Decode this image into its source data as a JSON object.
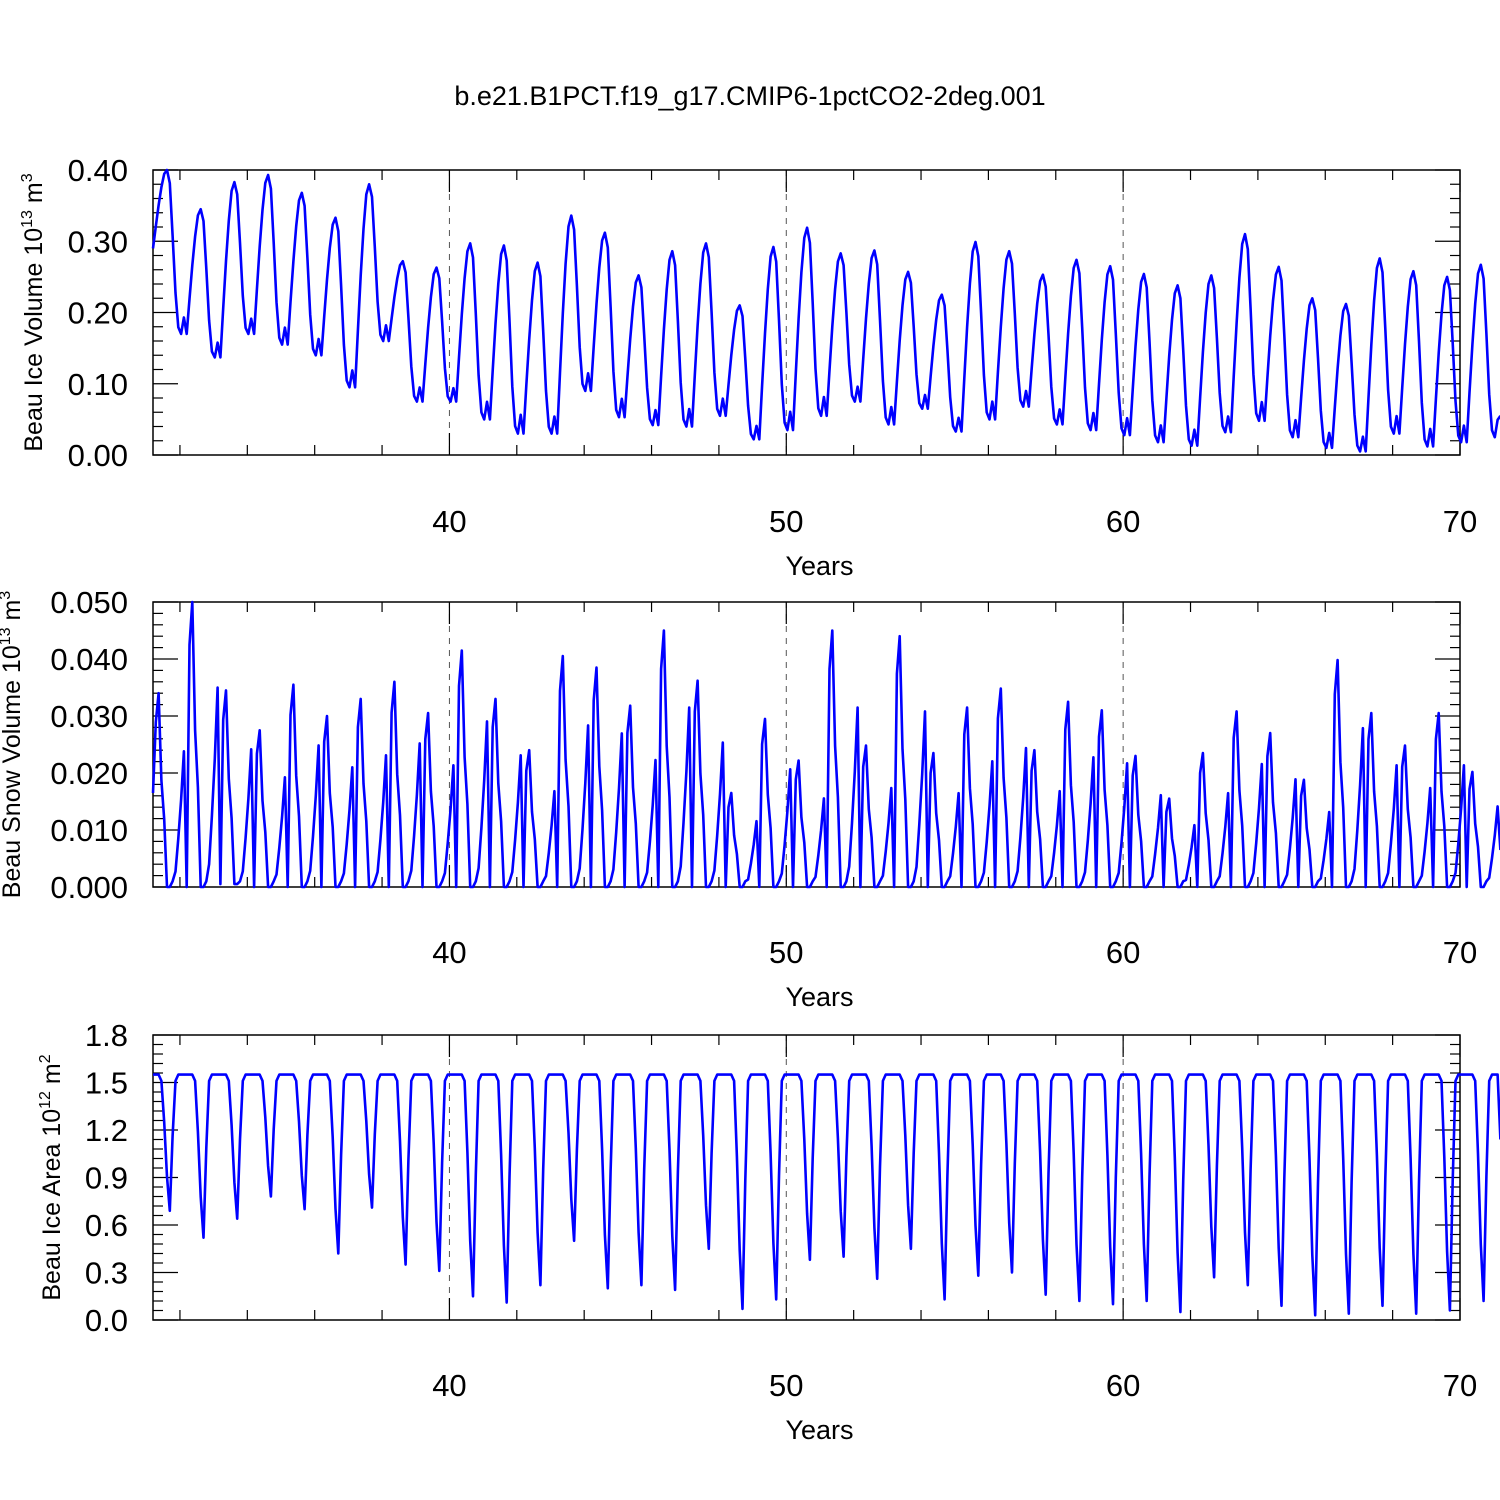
{
  "title": "b.e21.B1PCT.f19_g17.CMIP6-1pctCO2-2deg.001",
  "chart_data": [
    {
      "type": "line",
      "name": "ice-volume",
      "ylabel_main": "Beau Ice Volume 10",
      "ylabel_exp": "13",
      "ylabel_unit": " m",
      "ylabel_unit_exp": "3",
      "xlabel": "Years",
      "xlim": [
        31.2,
        70
      ],
      "ylim": [
        0,
        0.4
      ],
      "xticks": [
        "40",
        "50",
        "60",
        "70"
      ],
      "xtick_values": [
        40,
        50,
        60,
        70
      ],
      "yticks": [
        "0.00",
        "0.10",
        "0.20",
        "0.30",
        "0.40"
      ],
      "ytick_values": [
        0,
        0.1,
        0.2,
        0.3,
        0.4
      ],
      "line_color": "#0000ff",
      "start_year": 31.2,
      "maxima": [
        0.4,
        0.345,
        0.383,
        0.393,
        0.368,
        0.333,
        0.38,
        0.272,
        0.263,
        0.297,
        0.294,
        0.27,
        0.336,
        0.312,
        0.252,
        0.286,
        0.297,
        0.21,
        0.292,
        0.319,
        0.283,
        0.287,
        0.257,
        0.225,
        0.299,
        0.286,
        0.253,
        0.274,
        0.265,
        0.254,
        0.238,
        0.252,
        0.31,
        0.264,
        0.22,
        0.212,
        0.276,
        0.258,
        0.25,
        0.267
      ],
      "minima": [
        0.17,
        0.137,
        0.17,
        0.155,
        0.14,
        0.095,
        0.16,
        0.075,
        0.075,
        0.05,
        0.03,
        0.03,
        0.09,
        0.053,
        0.042,
        0.04,
        0.055,
        0.022,
        0.035,
        0.055,
        0.075,
        0.043,
        0.065,
        0.033,
        0.05,
        0.068,
        0.043,
        0.035,
        0.028,
        0.018,
        0.013,
        0.032,
        0.048,
        0.025,
        0.01,
        0.005,
        0.03,
        0.012,
        0.018,
        0.025
      ],
      "end_value": 0.055
    },
    {
      "type": "line",
      "name": "snow-volume",
      "ylabel_main": "Beau Snow Volume 10",
      "ylabel_exp": "13",
      "ylabel_unit": " m",
      "ylabel_unit_exp": "3",
      "xlabel": "Years",
      "xlim": [
        31.2,
        70
      ],
      "ylim": [
        0,
        0.05
      ],
      "xticks": [
        "40",
        "50",
        "60",
        "70"
      ],
      "xtick_values": [
        40,
        50,
        60,
        70
      ],
      "yticks": [
        "0.000",
        "0.010",
        "0.020",
        "0.030",
        "0.040",
        "0.050"
      ],
      "ytick_values": [
        0,
        0.01,
        0.02,
        0.03,
        0.04,
        0.05
      ],
      "line_color": "#0000ff",
      "start_year": 31.2,
      "maxima": [
        0.034,
        0.05,
        0.0345,
        0.0275,
        0.0355,
        0.03,
        0.033,
        0.036,
        0.0305,
        0.0415,
        0.033,
        0.024,
        0.0405,
        0.0385,
        0.0318,
        0.045,
        0.0362,
        0.0165,
        0.0295,
        0.0222,
        0.045,
        0.0248,
        0.044,
        0.0235,
        0.0315,
        0.0348,
        0.024,
        0.0325,
        0.031,
        0.023,
        0.0155,
        0.0235,
        0.0308,
        0.027,
        0.0188,
        0.0398,
        0.0305,
        0.0248,
        0.0305,
        0.0202
      ],
      "minima": [
        0.0,
        0.0,
        0.0005,
        0.0,
        0.0,
        0.0,
        0.0,
        0.0,
        0.0,
        0.0,
        0.0,
        0.0,
        0.0,
        0.0,
        0.0,
        0.0,
        0.0,
        0.0,
        0.0,
        0.0,
        0.0,
        0.0,
        0.0,
        0.0,
        0.0,
        0.0,
        0.0,
        0.0,
        0.0,
        0.0,
        0.0,
        0.0,
        0.0,
        0.0,
        0.0,
        0.0,
        0.0,
        0.0,
        0.0,
        0.0
      ],
      "start_value": 0.0165,
      "end_value": 0.0065
    },
    {
      "type": "line",
      "name": "ice-area",
      "ylabel_main": "Beau Ice Area 10",
      "ylabel_exp": "12",
      "ylabel_unit": " m",
      "ylabel_unit_exp": "2",
      "xlabel": "Years",
      "xlim": [
        31.2,
        70
      ],
      "ylim": [
        0,
        1.8
      ],
      "xticks": [
        "40",
        "50",
        "60",
        "70"
      ],
      "xtick_values": [
        40,
        50,
        60,
        70
      ],
      "yticks": [
        "0.0",
        "0.3",
        "0.6",
        "0.9",
        "1.2",
        "1.5",
        "1.8"
      ],
      "ytick_values": [
        0,
        0.3,
        0.6,
        0.9,
        1.2,
        1.5,
        1.8
      ],
      "line_color": "#0000ff",
      "start_year": 31.2,
      "plateau": 1.55,
      "minima": [
        0.69,
        0.52,
        0.64,
        0.78,
        0.7,
        0.42,
        0.71,
        0.35,
        0.31,
        0.15,
        0.11,
        0.22,
        0.5,
        0.2,
        0.22,
        0.19,
        0.45,
        0.07,
        0.13,
        0.38,
        0.4,
        0.26,
        0.45,
        0.13,
        0.28,
        0.3,
        0.16,
        0.12,
        0.1,
        0.12,
        0.05,
        0.27,
        0.22,
        0.09,
        0.03,
        0.04,
        0.09,
        0.04,
        0.06,
        0.12
      ],
      "end_value": 1.14
    }
  ]
}
